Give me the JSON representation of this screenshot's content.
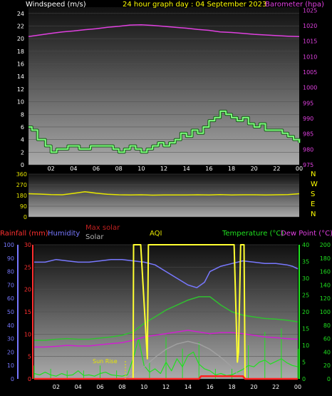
{
  "header": {
    "windspeed_label": "Windspeed (m/s)",
    "title": "24 hour graph day : 04 September 2023",
    "barometer_label": "Barometer (hpa)"
  },
  "legend": {
    "rainfall": "Rainfall (mm)",
    "humidity": "Humidity",
    "max_solar": "Max solar",
    "solar": "Solar",
    "aqi": "AQI",
    "temperature": "Temperature (°C)",
    "dew_point": "Dew Point (°C)"
  },
  "annotations": {
    "sun_rise": "Sun Rise"
  },
  "compass": [
    "N",
    "W",
    "S",
    "E",
    "N"
  ],
  "colors": {
    "wind": "#7cfc7c",
    "barometer": "#e040e0",
    "direction": "#e6e600",
    "rain": "#ff2020",
    "humidity": "#7878ff",
    "max_solar": "#a0a0a0",
    "solar": "#ffff30",
    "aqi": "#20e020",
    "temperature": "#30c030",
    "dew_point": "#d020d0"
  },
  "chart_data": [
    {
      "type": "line",
      "title": "24 hour graph day : 04 September 2023",
      "x_ticks": [
        "02",
        "04",
        "06",
        "08",
        "10",
        "12",
        "14",
        "16",
        "18",
        "20",
        "22",
        "00"
      ],
      "y_left_label": "Windspeed (m/s)",
      "y_left_ticks": [
        "0",
        "2",
        "4",
        "6",
        "8",
        "10",
        "12",
        "14",
        "16",
        "18",
        "20",
        "22",
        "24"
      ],
      "y_left_range": [
        0,
        25
      ],
      "y_right_label": "Barometer (hpa)",
      "y_right_ticks": [
        "975",
        "980",
        "985",
        "990",
        "995",
        "1000",
        "1005",
        "1010",
        "1015",
        "1020",
        "1025"
      ],
      "y_right_range": [
        975,
        1026
      ],
      "series": [
        {
          "name": "Windspeed",
          "axis": "left",
          "x": [
            0,
            0.3,
            0.8,
            1.5,
            2.0,
            2.5,
            3.5,
            4.5,
            5.5,
            7.5,
            8.0,
            8.5,
            9.0,
            9.5,
            10.0,
            10.5,
            11.0,
            11.5,
            12.0,
            12.5,
            13.0,
            13.5,
            14.0,
            14.5,
            15.0,
            15.5,
            16.0,
            16.5,
            17.0,
            17.5,
            18.0,
            18.5,
            19.0,
            19.5,
            20.0,
            20.5,
            21.0,
            22.0,
            22.5,
            23.0,
            23.5,
            24.0
          ],
          "y": [
            6,
            5.5,
            4,
            3,
            2,
            2.5,
            3,
            2.5,
            3,
            2.5,
            2,
            2.5,
            3,
            2.5,
            2,
            2.5,
            3,
            3.5,
            3,
            3.5,
            4,
            5,
            4.5,
            5.5,
            5,
            6,
            7,
            7.5,
            8.5,
            8,
            7.5,
            7,
            7.5,
            6.5,
            6,
            6.5,
            5.5,
            5.5,
            5,
            4.5,
            4,
            3.5
          ]
        },
        {
          "name": "Barometer",
          "axis": "right",
          "x": [
            0,
            1,
            2,
            3,
            4,
            5,
            6,
            7,
            8,
            9,
            10,
            11,
            12,
            13,
            14,
            15,
            16,
            17,
            18,
            19,
            20,
            21,
            22,
            23,
            24
          ],
          "y": [
            1016.5,
            1017,
            1017.5,
            1018,
            1018.3,
            1018.7,
            1019,
            1019.5,
            1019.8,
            1020.2,
            1020.3,
            1020.1,
            1019.8,
            1019.5,
            1019.2,
            1018.8,
            1018.5,
            1018,
            1017.8,
            1017.5,
            1017.2,
            1017,
            1016.8,
            1016.6,
            1016.5
          ]
        }
      ]
    },
    {
      "type": "line",
      "y_ticks": [
        "0",
        "90",
        "180",
        "270",
        "360"
      ],
      "y_range": [
        0,
        360
      ],
      "x_ticks": [
        "02",
        "04",
        "06",
        "08",
        "10",
        "12",
        "14",
        "16",
        "18",
        "20",
        "22",
        "00"
      ],
      "series": [
        {
          "name": "Wind direction",
          "x": [
            0,
            1,
            2,
            3,
            4,
            5,
            6,
            7,
            8,
            9,
            10,
            11,
            12,
            13,
            14,
            15,
            16,
            17,
            18,
            19,
            20,
            21,
            22,
            23,
            24
          ],
          "y": [
            195,
            192,
            188,
            186,
            198,
            212,
            200,
            190,
            186,
            184,
            186,
            183,
            185,
            184,
            184,
            186,
            185,
            187,
            184,
            186,
            186,
            184,
            186,
            188,
            195
          ]
        }
      ]
    },
    {
      "type": "line",
      "x_ticks": [
        "02",
        "04",
        "06",
        "08",
        "10",
        "12",
        "14",
        "16",
        "18",
        "20",
        "22",
        "00"
      ],
      "axes": {
        "rainfall_ticks": [
          "0",
          "5",
          "10",
          "15",
          "20",
          "25",
          "30"
        ],
        "rainfall_range": [
          0,
          30
        ],
        "humidity_ticks": [
          "0",
          "10",
          "20",
          "30",
          "40",
          "50",
          "60",
          "70",
          "80",
          "90",
          "100"
        ],
        "humidity_range": [
          0,
          100
        ],
        "temperature_ticks": [
          "0",
          "5",
          "10",
          "15",
          "20",
          "25",
          "30",
          "35",
          "40"
        ],
        "temperature_range": [
          0,
          40
        ],
        "aqi_ticks": [
          "0",
          "20",
          "40",
          "60",
          "80",
          "100",
          "120",
          "140",
          "160",
          "180",
          "200"
        ],
        "aqi_range": [
          0,
          200
        ]
      },
      "series": [
        {
          "name": "Humidity",
          "axis": "humidity",
          "x": [
            0,
            1,
            2,
            3,
            4,
            5,
            6,
            7,
            8,
            9,
            10,
            11,
            12,
            13,
            14,
            14.8,
            15.5,
            16,
            17,
            18,
            19,
            20,
            21,
            22,
            23,
            23.5,
            24
          ],
          "y": [
            87,
            87,
            89,
            88,
            87,
            87,
            88,
            89,
            89,
            88,
            87,
            85,
            80,
            75,
            70,
            68,
            72,
            80,
            84,
            86,
            88,
            87,
            86,
            86,
            85,
            84,
            82
          ]
        },
        {
          "name": "Temperature",
          "axis": "temperature",
          "x": [
            0,
            1,
            2,
            3,
            4,
            5,
            6,
            7,
            8,
            9,
            10,
            11,
            12,
            13,
            14,
            15,
            16,
            17,
            18,
            19,
            20,
            21,
            22,
            23,
            24
          ],
          "y": [
            11.5,
            11.5,
            11.8,
            12,
            11.8,
            11.8,
            12.2,
            12.5,
            13,
            14,
            16.5,
            18.5,
            20.5,
            22,
            23.5,
            24.5,
            24.5,
            22,
            20,
            19,
            18.5,
            18,
            17.8,
            17.5,
            17
          ]
        },
        {
          "name": "Dew Point",
          "axis": "temperature",
          "x": [
            0,
            1,
            2,
            3,
            4,
            5,
            6,
            7,
            8,
            9,
            10,
            11,
            12,
            13,
            14,
            15,
            16,
            17,
            18,
            19,
            20,
            21,
            22,
            23,
            24
          ],
          "y": [
            9.5,
            9.5,
            9.7,
            10,
            9.8,
            9.8,
            10.2,
            10.5,
            10.8,
            11.5,
            12.5,
            13,
            13.5,
            14,
            14.5,
            14,
            13.5,
            13.8,
            13.8,
            13.5,
            13,
            12.5,
            12.3,
            12,
            11.8
          ]
        },
        {
          "name": "Max solar",
          "axis": "aqi",
          "x": [
            8.3,
            9,
            10,
            11,
            12,
            13,
            14,
            15,
            16,
            17,
            18,
            18.5,
            19.2
          ],
          "y": [
            0,
            8,
            18,
            32,
            44,
            52,
            56,
            52,
            44,
            32,
            18,
            8,
            0
          ]
        },
        {
          "name": "Solar",
          "axis": "aqi",
          "x": [
            0,
            8.3,
            9.0,
            9.05,
            9.7,
            10.3,
            10.4,
            14.3,
            15.0,
            18.2,
            18.5,
            18.6,
            18.8,
            19.1,
            19.2,
            19.5,
            24
          ],
          "y": [
            0,
            0,
            0,
            200,
            200,
            30,
            200,
            200,
            200,
            200,
            25,
            40,
            200,
            200,
            0,
            0,
            0
          ]
        },
        {
          "name": "AQI",
          "axis": "aqi",
          "x": [
            0,
            0.5,
            1,
            1.5,
            2,
            2.5,
            3,
            3.5,
            4,
            4.5,
            5,
            5.5,
            6,
            6.5,
            7,
            7.5,
            8,
            8.5,
            9,
            9.5,
            10,
            10.5,
            11,
            11.5,
            12,
            12.5,
            13,
            13.5,
            14,
            14.5,
            15,
            15.5,
            16,
            16.5,
            17,
            17.5,
            18,
            18.5,
            19,
            19.5,
            20,
            20.5,
            21,
            21.5,
            22,
            22.5,
            23,
            23.5,
            24
          ],
          "y": [
            8,
            6,
            10,
            6,
            4,
            8,
            5,
            6,
            12,
            5,
            6,
            4,
            8,
            10,
            6,
            5,
            4,
            6,
            30,
            60,
            20,
            10,
            15,
            8,
            25,
            12,
            30,
            18,
            35,
            40,
            22,
            15,
            12,
            6,
            8,
            5,
            6,
            10,
            14,
            20,
            18,
            25,
            28,
            22,
            26,
            30,
            24,
            20,
            18
          ]
        },
        {
          "name": "Rainfall",
          "axis": "rainfall",
          "x": [
            0,
            15,
            15.2,
            19,
            19.2,
            24
          ],
          "y": [
            0,
            0,
            0.6,
            0.6,
            0,
            0
          ]
        }
      ]
    }
  ]
}
